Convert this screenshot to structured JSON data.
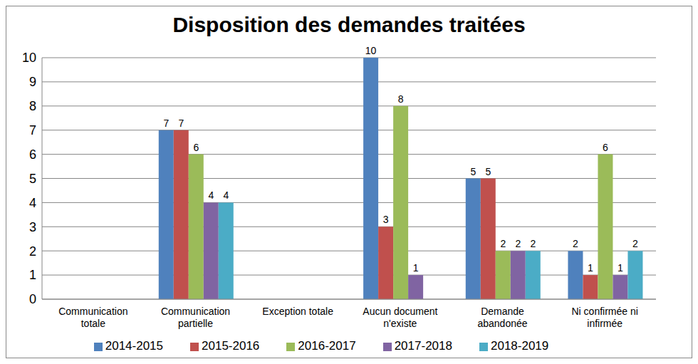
{
  "chart_data": {
    "type": "bar",
    "title": "Disposition des demandes traitées",
    "categories": [
      "Communication totale",
      "Communication partielle",
      "Exception totale",
      "Aucun document n'existe",
      "Demande abandonée",
      "Ni confirmée ni infirmée"
    ],
    "series": [
      {
        "name": "2014-2015",
        "color": "#4f81bd",
        "values": [
          0,
          7,
          0,
          10,
          5,
          2
        ]
      },
      {
        "name": "2015-2016",
        "color": "#c0504d",
        "values": [
          0,
          7,
          0,
          3,
          5,
          1
        ]
      },
      {
        "name": "2016-2017",
        "color": "#9bbb59",
        "values": [
          0,
          6,
          0,
          8,
          2,
          6
        ]
      },
      {
        "name": "2017-2018",
        "color": "#8064a2",
        "values": [
          0,
          4,
          0,
          1,
          2,
          1
        ]
      },
      {
        "name": "2018-2019",
        "color": "#4bacc6",
        "values": [
          0,
          4,
          0,
          0,
          2,
          2
        ]
      }
    ],
    "ylim": [
      0,
      10
    ],
    "yticks": [
      0,
      1,
      2,
      3,
      4,
      5,
      6,
      7,
      8,
      9,
      10
    ],
    "grid": true,
    "data_labels": true,
    "legend": "bottom"
  }
}
